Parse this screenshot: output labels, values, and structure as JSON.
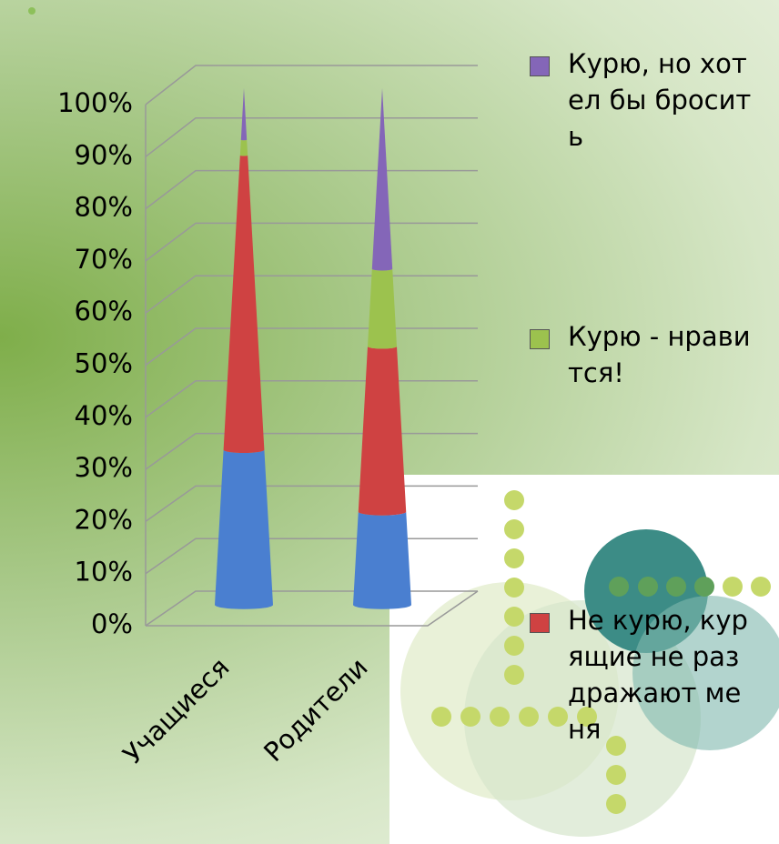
{
  "chart_data": {
    "type": "cone-stacked",
    "categories": [
      "Учащиеся",
      "Родители"
    ],
    "series": [
      {
        "color": "#4a7fd0",
        "values": [
          30,
          18
        ]
      },
      {
        "name": "Не курю, курящие не раздражают меня",
        "color": "#cf4242",
        "values": [
          57,
          32
        ]
      },
      {
        "name": "Курю - нравится!",
        "color": "#9cc24e",
        "values": [
          3,
          15
        ]
      },
      {
        "name": "Курю, но хотел бы бросить",
        "color": "#8466b8",
        "values": [
          10,
          35
        ]
      }
    ],
    "ylim": [
      0,
      100
    ],
    "yticks": [
      {
        "value": 0,
        "label": "0%"
      },
      {
        "value": 10,
        "label": "10%"
      },
      {
        "value": 20,
        "label": "20%"
      },
      {
        "value": 30,
        "label": "30%"
      },
      {
        "value": 40,
        "label": "40%"
      },
      {
        "value": 50,
        "label": "50%"
      },
      {
        "value": 60,
        "label": "60%"
      },
      {
        "value": 70,
        "label": "70%"
      },
      {
        "value": 80,
        "label": "80%"
      },
      {
        "value": 90,
        "label": "90%"
      },
      {
        "value": 100,
        "label": "100%"
      }
    ],
    "grid": true
  }
}
